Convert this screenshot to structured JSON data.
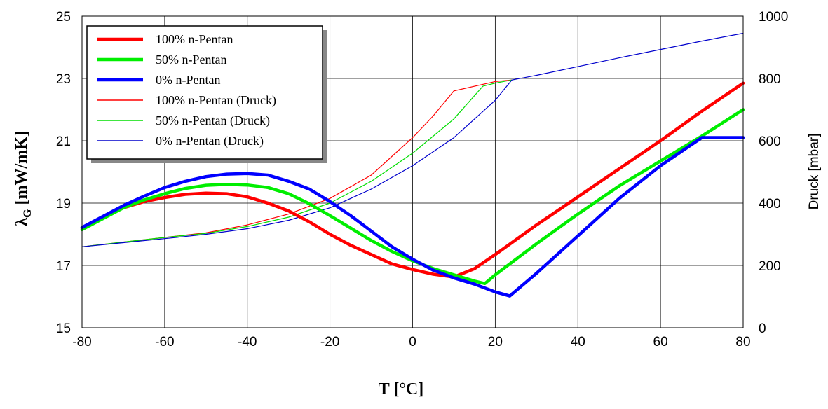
{
  "chart_data": {
    "type": "line",
    "title": "",
    "xlabel": "T [°C]",
    "ylabel_main": "G",
    "ylabel_left": {
      "prefix": "λ",
      "subscript": "G",
      "suffix": " [mW/mK]"
    },
    "ylabel_right": "Druck [mbar]",
    "xlim": [
      -80,
      80
    ],
    "ylim_left": [
      15,
      25
    ],
    "ylim_right": [
      0,
      1000
    ],
    "x_ticks": [
      "-80",
      "-60",
      "-40",
      "-20",
      "0",
      "20",
      "40",
      "60",
      "80"
    ],
    "y_left_ticks": [
      "15",
      "17",
      "19",
      "21",
      "23",
      "25"
    ],
    "y_right_ticks": [
      "0",
      "200",
      "400",
      "600",
      "800",
      "1000"
    ],
    "grid": true,
    "legend_placement": "top-left",
    "series": [
      {
        "name": "100% n-Pentan",
        "axis": "left",
        "color": "#ff0000",
        "width": "thick",
        "points": [
          [
            -80,
            18.2
          ],
          [
            -75,
            18.55
          ],
          [
            -70,
            18.85
          ],
          [
            -65,
            19.05
          ],
          [
            -60,
            19.18
          ],
          [
            -55,
            19.28
          ],
          [
            -50,
            19.32
          ],
          [
            -45,
            19.3
          ],
          [
            -40,
            19.2
          ],
          [
            -35,
            19.0
          ],
          [
            -30,
            18.75
          ],
          [
            -25,
            18.4
          ],
          [
            -20,
            18.0
          ],
          [
            -15,
            17.65
          ],
          [
            -10,
            17.35
          ],
          [
            -5,
            17.05
          ],
          [
            0,
            16.87
          ],
          [
            5,
            16.72
          ],
          [
            10,
            16.63
          ],
          [
            15,
            16.9
          ],
          [
            20,
            17.35
          ],
          [
            30,
            18.3
          ],
          [
            40,
            19.2
          ],
          [
            50,
            20.1
          ],
          [
            60,
            21.0
          ],
          [
            70,
            21.95
          ],
          [
            80,
            22.85
          ]
        ]
      },
      {
        "name": "50% n-Pentan",
        "axis": "left",
        "color": "#00ee00",
        "width": "thick",
        "points": [
          [
            -80,
            18.15
          ],
          [
            -75,
            18.5
          ],
          [
            -70,
            18.85
          ],
          [
            -65,
            19.1
          ],
          [
            -60,
            19.3
          ],
          [
            -55,
            19.47
          ],
          [
            -50,
            19.57
          ],
          [
            -45,
            19.6
          ],
          [
            -40,
            19.58
          ],
          [
            -35,
            19.5
          ],
          [
            -30,
            19.3
          ],
          [
            -25,
            18.98
          ],
          [
            -20,
            18.6
          ],
          [
            -15,
            18.2
          ],
          [
            -10,
            17.8
          ],
          [
            -5,
            17.45
          ],
          [
            0,
            17.15
          ],
          [
            5,
            16.9
          ],
          [
            10,
            16.7
          ],
          [
            15,
            16.5
          ],
          [
            17.5,
            16.42
          ],
          [
            20,
            16.7
          ],
          [
            30,
            17.7
          ],
          [
            40,
            18.65
          ],
          [
            50,
            19.55
          ],
          [
            60,
            20.35
          ],
          [
            70,
            21.15
          ],
          [
            80,
            22.0
          ]
        ]
      },
      {
        "name": "0% n-Pentan",
        "axis": "left",
        "color": "#0000ff",
        "width": "thick",
        "points": [
          [
            -80,
            18.22
          ],
          [
            -75,
            18.57
          ],
          [
            -70,
            18.92
          ],
          [
            -65,
            19.22
          ],
          [
            -60,
            19.5
          ],
          [
            -55,
            19.7
          ],
          [
            -50,
            19.85
          ],
          [
            -45,
            19.93
          ],
          [
            -40,
            19.95
          ],
          [
            -35,
            19.9
          ],
          [
            -30,
            19.7
          ],
          [
            -25,
            19.45
          ],
          [
            -20,
            19.05
          ],
          [
            -15,
            18.6
          ],
          [
            -10,
            18.1
          ],
          [
            -5,
            17.6
          ],
          [
            0,
            17.2
          ],
          [
            5,
            16.85
          ],
          [
            10,
            16.6
          ],
          [
            15,
            16.4
          ],
          [
            20,
            16.15
          ],
          [
            23.5,
            16.02
          ],
          [
            30,
            16.75
          ],
          [
            40,
            17.95
          ],
          [
            50,
            19.15
          ],
          [
            60,
            20.2
          ],
          [
            70,
            21.1
          ],
          [
            80,
            21.1
          ]
        ]
      },
      {
        "name": "100% n-Pentan (Druck)",
        "axis": "right",
        "color": "#ff0000",
        "width": "thin",
        "points": [
          [
            -80,
            260
          ],
          [
            -70,
            275
          ],
          [
            -60,
            290
          ],
          [
            -50,
            305
          ],
          [
            -40,
            330
          ],
          [
            -30,
            365
          ],
          [
            -20,
            415
          ],
          [
            -10,
            490
          ],
          [
            0,
            610
          ],
          [
            5,
            680
          ],
          [
            10,
            760
          ],
          [
            15,
            775
          ],
          [
            20,
            790
          ],
          [
            24,
            795
          ]
        ]
      },
      {
        "name": "50% n-Pentan (Druck)",
        "axis": "right",
        "color": "#00dd00",
        "width": "thin",
        "points": [
          [
            -80,
            260
          ],
          [
            -70,
            275
          ],
          [
            -60,
            290
          ],
          [
            -50,
            303
          ],
          [
            -40,
            325
          ],
          [
            -30,
            355
          ],
          [
            -20,
            400
          ],
          [
            -10,
            470
          ],
          [
            0,
            560
          ],
          [
            10,
            670
          ],
          [
            17,
            775
          ],
          [
            20,
            785
          ],
          [
            24,
            795
          ]
        ]
      },
      {
        "name": "0% n-Pentan (Druck)",
        "axis": "right",
        "color": "#0000cc",
        "width": "thin",
        "points": [
          [
            -80,
            260
          ],
          [
            -70,
            273
          ],
          [
            -60,
            286
          ],
          [
            -50,
            300
          ],
          [
            -40,
            318
          ],
          [
            -30,
            345
          ],
          [
            -20,
            385
          ],
          [
            -10,
            445
          ],
          [
            0,
            520
          ],
          [
            10,
            610
          ],
          [
            20,
            730
          ],
          [
            24,
            795
          ],
          [
            30,
            810
          ],
          [
            40,
            838
          ],
          [
            50,
            866
          ],
          [
            60,
            893
          ],
          [
            70,
            920
          ],
          [
            80,
            945
          ]
        ]
      }
    ]
  }
}
